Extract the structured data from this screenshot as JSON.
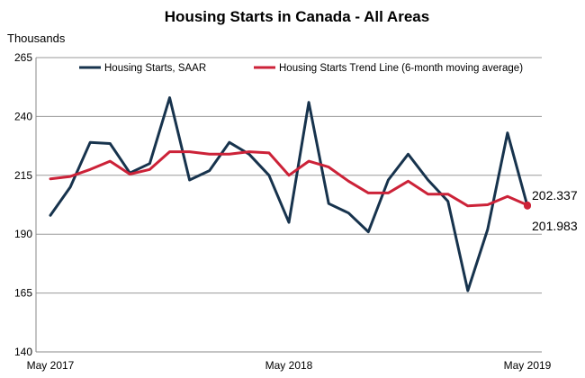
{
  "chart_data": {
    "type": "line",
    "title": "Housing Starts in Canada - All Areas",
    "ylabel": "Thousands",
    "xlabel": "",
    "ylim": [
      140,
      265
    ],
    "yticks": [
      140,
      165,
      190,
      215,
      240,
      265
    ],
    "x_tick_labels": [
      {
        "index": 0,
        "label": "May 2017"
      },
      {
        "index": 12,
        "label": "May 2018"
      },
      {
        "index": 24,
        "label": "May 2019"
      }
    ],
    "grid": "horizontal",
    "legend_position": "top",
    "series": [
      {
        "name": "Housing Starts, SAAR",
        "color": "#17334d",
        "values": [
          198,
          210,
          229,
          228.5,
          216,
          220,
          248,
          213,
          217,
          229,
          224,
          215,
          195,
          246,
          203,
          199,
          191,
          213,
          224,
          213,
          204,
          166,
          192,
          233,
          201.983
        ]
      },
      {
        "name": "Housing Starts Trend Line (6-month moving average)",
        "color": "#cc2238",
        "values": [
          213.5,
          214.5,
          217.5,
          221,
          215.5,
          217.5,
          225,
          225,
          224,
          224,
          225,
          224.5,
          215,
          221,
          218.5,
          212.5,
          207.5,
          207.5,
          212.5,
          207,
          207,
          202,
          202.5,
          206,
          202.337
        ]
      }
    ],
    "annotations": [
      {
        "text": "202.337",
        "series": 1,
        "index": 24
      },
      {
        "text": "201.983",
        "series": 0,
        "index": 24
      }
    ]
  }
}
